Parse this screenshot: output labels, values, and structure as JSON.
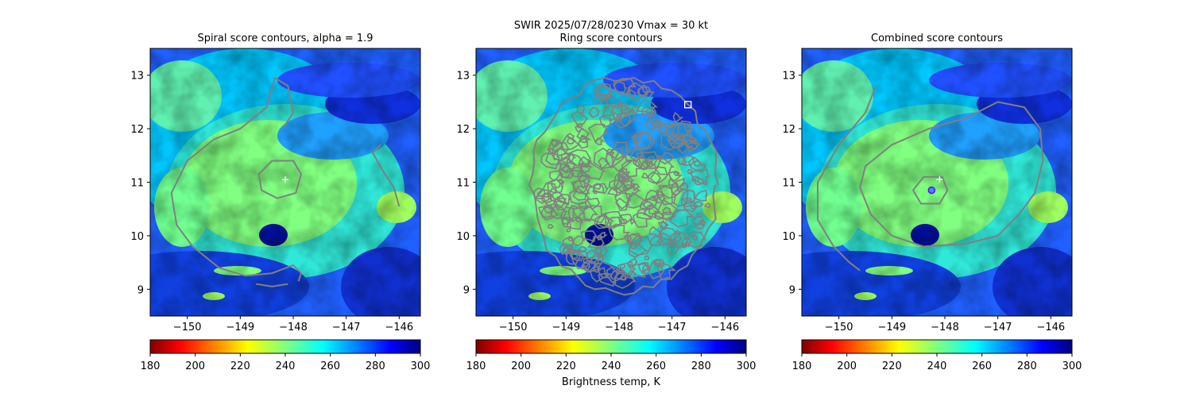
{
  "figure": {
    "suptitle_line1": "SWIR  2025/07/28/0230    Vmax = 30 kt",
    "colorbar_label": "Brightness temp, K"
  },
  "chart_data": [
    {
      "type": "heatmap",
      "title": "Spiral score contours, alpha =  1.9",
      "xlabel": "",
      "ylabel": "",
      "xlim": [
        -150.7,
        -145.6
      ],
      "ylim": [
        8.5,
        13.5
      ],
      "xticks": [
        -150,
        -149,
        -148,
        -147,
        -146
      ],
      "xtick_labels": [
        "−150",
        "−149",
        "−148",
        "−147",
        "−146"
      ],
      "yticks": [
        9,
        10,
        11,
        12,
        13
      ],
      "ytick_labels": [
        "9",
        "10",
        "11",
        "12",
        "13"
      ],
      "center_marker": {
        "lon": -148.15,
        "lat": 11.05,
        "symbol": "+",
        "color": "#ffffff"
      },
      "contours": [
        [
          [
            -148.4,
            11.4
          ],
          [
            -148.0,
            11.4
          ],
          [
            -147.85,
            11.15
          ],
          [
            -147.95,
            10.8
          ],
          [
            -148.3,
            10.7
          ],
          [
            -148.6,
            10.85
          ],
          [
            -148.65,
            11.15
          ],
          [
            -148.4,
            11.4
          ]
        ],
        [
          [
            -148.2,
            12.0
          ],
          [
            -148.0,
            12.3
          ],
          [
            -148.1,
            12.8
          ],
          [
            -148.35,
            12.95
          ],
          [
            -148.5,
            12.4
          ],
          [
            -149.0,
            12.0
          ],
          [
            -149.5,
            11.8
          ],
          [
            -150.0,
            11.4
          ],
          [
            -150.3,
            10.8
          ],
          [
            -150.2,
            10.2
          ],
          [
            -149.9,
            9.8
          ],
          [
            -149.4,
            9.4
          ],
          [
            -148.9,
            9.25
          ],
          [
            -148.4,
            9.3
          ],
          [
            -148.0,
            9.45
          ],
          [
            -147.85,
            9.3
          ],
          [
            -147.9,
            9.15
          ]
        ],
        [
          [
            -146.35,
            11.7
          ],
          [
            -146.5,
            11.55
          ],
          [
            -146.3,
            11.2
          ],
          [
            -146.1,
            10.9
          ],
          [
            -146.0,
            10.55
          ]
        ],
        [
          [
            -148.7,
            9.1
          ],
          [
            -148.4,
            9.05
          ],
          [
            -148.1,
            9.1
          ]
        ]
      ]
    },
    {
      "type": "heatmap",
      "title": "Ring score contours",
      "xlabel": "",
      "ylabel": "",
      "xlim": [
        -150.7,
        -145.6
      ],
      "ylim": [
        8.5,
        13.5
      ],
      "xticks": [
        -150,
        -149,
        -148,
        -147,
        -146
      ],
      "xtick_labels": [
        "−150",
        "−149",
        "−148",
        "−147",
        "−146"
      ],
      "yticks": [
        9,
        10,
        11,
        12,
        13
      ],
      "ytick_labels": [
        "9",
        "10",
        "11",
        "12",
        "13"
      ],
      "square_marker": {
        "lon": -146.7,
        "lat": 12.45,
        "color": "#ffffff"
      },
      "ring_region": {
        "lon_center": -147.9,
        "lat_center": 10.95,
        "lon_radius": 1.75,
        "lat_radius": 2.0
      }
    },
    {
      "type": "heatmap",
      "title": "Combined score contours",
      "xlabel": "",
      "ylabel": "",
      "xlim": [
        -150.7,
        -145.6
      ],
      "ylim": [
        8.5,
        13.5
      ],
      "xticks": [
        -150,
        -149,
        -148,
        -147,
        -146
      ],
      "xtick_labels": [
        "−150",
        "−149",
        "−148",
        "−147",
        "−146"
      ],
      "yticks": [
        9,
        10,
        11,
        12,
        13
      ],
      "ytick_labels": [
        "9",
        "10",
        "11",
        "12",
        "13"
      ],
      "center_marker": {
        "lon": -148.1,
        "lat": 11.05,
        "symbol": "+",
        "color": "#ffffff"
      },
      "circle_marker": {
        "lon": -148.25,
        "lat": 10.85,
        "color": "#6a00ff"
      },
      "contours": [
        [
          [
            -148.4,
            11.1
          ],
          [
            -148.05,
            11.1
          ],
          [
            -147.95,
            10.85
          ],
          [
            -148.1,
            10.6
          ],
          [
            -148.45,
            10.6
          ],
          [
            -148.6,
            10.85
          ],
          [
            -148.4,
            11.1
          ]
        ],
        [
          [
            -147.6,
            12.2
          ],
          [
            -147.0,
            12.5
          ],
          [
            -146.5,
            12.4
          ],
          [
            -146.2,
            12.0
          ],
          [
            -146.15,
            11.4
          ],
          [
            -146.3,
            10.8
          ],
          [
            -146.6,
            10.4
          ],
          [
            -147.0,
            10.0
          ],
          [
            -147.6,
            9.85
          ],
          [
            -148.4,
            9.8
          ],
          [
            -149.0,
            10.0
          ],
          [
            -149.4,
            10.4
          ],
          [
            -149.6,
            10.9
          ],
          [
            -149.5,
            11.3
          ],
          [
            -149.0,
            11.7
          ],
          [
            -148.3,
            12.0
          ],
          [
            -147.6,
            12.2
          ]
        ],
        [
          [
            -149.3,
            12.8
          ],
          [
            -149.5,
            12.3
          ],
          [
            -150.0,
            11.7
          ],
          [
            -150.4,
            11.0
          ],
          [
            -150.4,
            10.3
          ],
          [
            -150.1,
            9.8
          ],
          [
            -149.8,
            9.5
          ],
          [
            -149.6,
            9.35
          ]
        ]
      ]
    }
  ],
  "colorbar": {
    "min": 180,
    "max": 300,
    "ticks": [
      180,
      200,
      220,
      240,
      260,
      280,
      300
    ],
    "tick_labels": [
      "180",
      "200",
      "220",
      "240",
      "260",
      "280",
      "300"
    ],
    "colormap": "jet_r",
    "contour_color": "#808080"
  }
}
